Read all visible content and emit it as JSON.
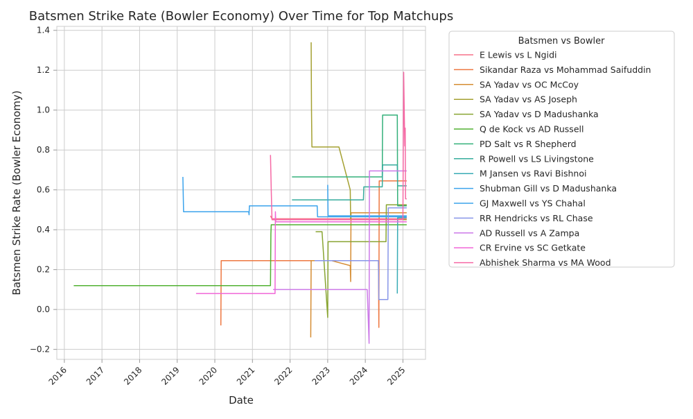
{
  "chart_data": {
    "type": "line",
    "title": "Batsmen Strike Rate (Bowler Economy) Over Time for Top Matchups",
    "xlabel": "Date",
    "ylabel": "Batsmen Strike Rate (Bowler Economy)",
    "xlim": [
      2015.8,
      2025.6
    ],
    "ylim": [
      -0.25,
      1.42
    ],
    "x_ticks": [
      2016,
      2017,
      2018,
      2019,
      2020,
      2021,
      2022,
      2023,
      2024,
      2025
    ],
    "x_tick_labels": [
      "2016",
      "2017",
      "2018",
      "2019",
      "2020",
      "2021",
      "2022",
      "2023",
      "2024",
      "2025"
    ],
    "y_ticks": [
      -0.2,
      0.0,
      0.2,
      0.4,
      0.6,
      0.8,
      1.0,
      1.2,
      1.4
    ],
    "y_tick_labels": [
      "−0.2",
      "0.0",
      "0.2",
      "0.4",
      "0.6",
      "0.8",
      "1.0",
      "1.2",
      "1.4"
    ],
    "grid": true,
    "legend_title": "Batsmen vs Bowler",
    "legend_position": "outside-right",
    "series": [
      {
        "name": "E Lewis vs L Ngidi",
        "color": "#f77189",
        "points": [
          [
            2021.48,
            0.47
          ],
          [
            2021.52,
            0.455
          ],
          [
            2025.1,
            0.455
          ]
        ]
      },
      {
        "name": "Sikandar Raza vs Mohammad Saifuddin",
        "color": "#ee7740",
        "points": [
          [
            2020.16,
            -0.08
          ],
          [
            2020.17,
            0.245
          ],
          [
            2024.35,
            0.245
          ],
          [
            2024.36,
            -0.09
          ],
          [
            2024.37,
            0.645
          ],
          [
            2025.1,
            0.645
          ]
        ]
      },
      {
        "name": "SA Yadav vs OC McCoy",
        "color": "#d58c32",
        "points": [
          [
            2022.55,
            -0.14
          ],
          [
            2022.56,
            0.245
          ],
          [
            2023.1,
            0.245
          ],
          [
            2023.6,
            0.22
          ],
          [
            2023.61,
            0.14
          ],
          [
            2023.62,
            0.485
          ],
          [
            2025.1,
            0.485
          ]
        ]
      },
      {
        "name": "SA Yadav vs AS Joseph",
        "color": "#a4a031",
        "points": [
          [
            2022.56,
            1.34
          ],
          [
            2022.57,
            1.0
          ],
          [
            2022.58,
            0.815
          ],
          [
            2023.3,
            0.815
          ],
          [
            2023.6,
            0.6
          ],
          [
            2023.61,
            0.45
          ],
          [
            2025.1,
            0.45
          ]
        ]
      },
      {
        "name": "SA Yadav vs D Madushanka",
        "color": "#88a431",
        "points": [
          [
            2022.68,
            0.39
          ],
          [
            2022.85,
            0.39
          ],
          [
            2023.0,
            -0.04
          ],
          [
            2023.01,
            0.34
          ],
          [
            2024.55,
            0.34
          ],
          [
            2024.56,
            0.525
          ],
          [
            2025.1,
            0.525
          ]
        ]
      },
      {
        "name": "Q de Kock vs AD Russell",
        "color": "#50b131",
        "points": [
          [
            2016.25,
            0.12
          ],
          [
            2021.48,
            0.12
          ],
          [
            2021.49,
            0.38
          ],
          [
            2021.5,
            0.425
          ],
          [
            2025.1,
            0.425
          ]
        ]
      },
      {
        "name": "PD Salt vs R Shepherd",
        "color": "#33b07a",
        "points": [
          [
            2022.05,
            0.665
          ],
          [
            2024.45,
            0.665
          ],
          [
            2024.46,
            0.975
          ],
          [
            2024.85,
            0.975
          ],
          [
            2024.86,
            0.52
          ],
          [
            2025.1,
            0.52
          ]
        ]
      },
      {
        "name": "R Powell vs LS Livingstone",
        "color": "#35ac9c",
        "points": [
          [
            2022.05,
            0.55
          ],
          [
            2023.95,
            0.55
          ],
          [
            2023.96,
            0.615
          ],
          [
            2024.45,
            0.615
          ],
          [
            2024.46,
            0.725
          ],
          [
            2024.85,
            0.725
          ],
          [
            2024.86,
            0.62
          ],
          [
            2025.1,
            0.62
          ]
        ]
      },
      {
        "name": "M Jansen vs Ravi Bishnoi",
        "color": "#37abb5",
        "points": [
          [
            2024.85,
            0.08
          ],
          [
            2024.86,
            0.46
          ],
          [
            2025.1,
            0.46
          ]
        ]
      },
      {
        "name": "Shubman Gill vs D Madushanka",
        "color": "#3ba3ec",
        "points": [
          [
            2023.0,
            0.625
          ],
          [
            2023.01,
            0.47
          ],
          [
            2025.1,
            0.47
          ]
        ]
      },
      {
        "name": "GJ Maxwell vs YS Chahal",
        "color": "#3ba3ec",
        "points": [
          [
            2019.15,
            0.665
          ],
          [
            2019.17,
            0.49
          ],
          [
            2020.9,
            0.49
          ],
          [
            2020.91,
            0.475
          ],
          [
            2020.92,
            0.52
          ],
          [
            2022.72,
            0.52
          ],
          [
            2022.73,
            0.465
          ],
          [
            2025.1,
            0.465
          ]
        ]
      },
      {
        "name": "RR Hendricks vs RL Chase",
        "color": "#8795e8",
        "points": [
          [
            2022.65,
            0.245
          ],
          [
            2024.35,
            0.245
          ],
          [
            2024.36,
            0.05
          ],
          [
            2024.6,
            0.05
          ],
          [
            2024.61,
            0.51
          ],
          [
            2025.1,
            0.51
          ]
        ]
      },
      {
        "name": "AD Russell vs A Zampa",
        "color": "#cc79e8",
        "points": [
          [
            2021.55,
            0.1
          ],
          [
            2024.05,
            0.1
          ],
          [
            2024.1,
            -0.17
          ],
          [
            2024.11,
            0.695
          ],
          [
            2025.1,
            0.695
          ]
        ]
      },
      {
        "name": "CR Ervine vs SC Getkate",
        "color": "#f166d7",
        "points": [
          [
            2019.5,
            0.08
          ],
          [
            2021.6,
            0.08
          ],
          [
            2021.61,
            0.49
          ],
          [
            2021.62,
            0.44
          ],
          [
            2025.1,
            0.44
          ]
        ]
      },
      {
        "name": "Abhishek Sharma vs MA Wood",
        "color": "#f668a4",
        "points": [
          [
            2021.48,
            0.775
          ],
          [
            2021.5,
            0.6
          ],
          [
            2021.52,
            0.45
          ],
          [
            2025.0,
            0.45
          ],
          [
            2025.02,
            1.19
          ],
          [
            2025.05,
            0.82
          ],
          [
            2025.06,
            0.91
          ],
          [
            2025.07,
            0.555
          ],
          [
            2025.1,
            0.555
          ]
        ]
      }
    ]
  }
}
